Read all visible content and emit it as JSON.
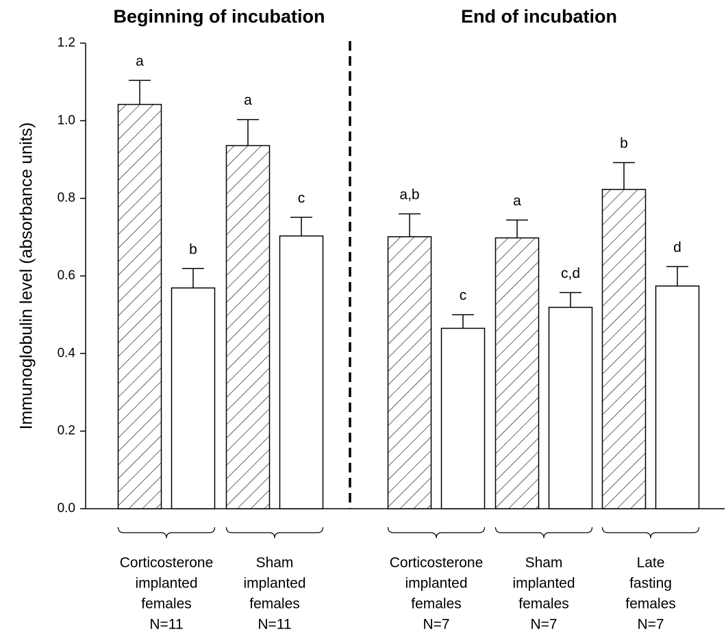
{
  "chart_data": {
    "type": "bar",
    "y_label": "Immunoglobulin level (absorbance units)",
    "sections": [
      {
        "title": "Beginning of incubation",
        "categories": [
          [
            "Corticosterone",
            "implanted",
            "females",
            "N=11"
          ],
          [
            "Sham",
            "implanted",
            "females",
            "N=11"
          ]
        ]
      },
      {
        "title": "End of incubation",
        "categories": [
          [
            "Corticosterone",
            "implanted",
            "females",
            "N=7"
          ],
          [
            "Sham",
            "implanted",
            "females",
            "N=7"
          ],
          [
            "Late",
            "fasting",
            "females",
            "N=7"
          ]
        ]
      }
    ],
    "series": [
      {
        "color": "#ffffff",
        "pattern": "hatch",
        "values": [
          1.042,
          0.936,
          0.701,
          0.698,
          0.823
        ],
        "errors": [
          0.062,
          0.067,
          0.059,
          0.046,
          0.069
        ],
        "letters": [
          "a",
          "a",
          "a,b",
          "a",
          "b"
        ]
      },
      {
        "color": "#ffffff",
        "pattern": "none",
        "values": [
          0.569,
          0.703,
          0.465,
          0.519,
          0.574
        ],
        "errors": [
          0.05,
          0.048,
          0.035,
          0.038,
          0.05
        ],
        "letters": [
          "b",
          "c",
          "c",
          "c,d",
          "d"
        ]
      }
    ],
    "ylim": [
      0,
      1.2
    ],
    "yticks": [
      {
        "value": 0,
        "label": "0.0"
      },
      {
        "value": 0.2,
        "label": "0.2"
      },
      {
        "value": 0.4,
        "label": "0.4"
      },
      {
        "value": 0.6,
        "label": "0.6"
      },
      {
        "value": 0.8,
        "label": "0.8"
      },
      {
        "value": 1.0,
        "label": "1.0"
      },
      {
        "value": 1.2,
        "label": "1.2"
      }
    ]
  }
}
